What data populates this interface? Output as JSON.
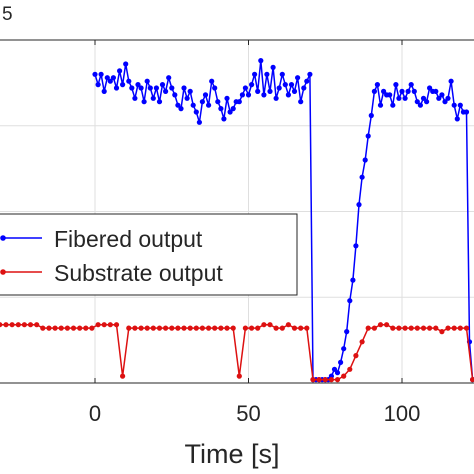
{
  "chart_data": {
    "type": "line",
    "xlabel": "Time [s]",
    "exponent_label": "5",
    "xlim": [
      -31,
      124
    ],
    "ylim": [
      0,
      1
    ],
    "grid": true,
    "legend_position": "middle-left",
    "x_ticks": [
      {
        "value": 0,
        "label": "0"
      },
      {
        "value": 50,
        "label": "50"
      },
      {
        "value": 100,
        "label": "100"
      }
    ],
    "series": [
      {
        "name": "Fibered output",
        "color": "#0000ff",
        "x": [
          0,
          1,
          2,
          3,
          4,
          5,
          6,
          7,
          8,
          9,
          10,
          11,
          12,
          13,
          14,
          15,
          16,
          17,
          18,
          19,
          20,
          21,
          22,
          23,
          24,
          25,
          26,
          27,
          28,
          29,
          30,
          31,
          32,
          33,
          34,
          35,
          36,
          37,
          38,
          39,
          40,
          41,
          42,
          43,
          44,
          45,
          46,
          47,
          48,
          49,
          50,
          51,
          52,
          53,
          54,
          55,
          56,
          57,
          58,
          59,
          60,
          61,
          62,
          63,
          64,
          65,
          66,
          67,
          68,
          69,
          70,
          71,
          72,
          73,
          74,
          75,
          76,
          77,
          78,
          79,
          80,
          81,
          82,
          83,
          84,
          85,
          86,
          87,
          88,
          89,
          90,
          91,
          92,
          93,
          94,
          95,
          96,
          97,
          98,
          99,
          100,
          101,
          102,
          103,
          104,
          105,
          106,
          107,
          108,
          109,
          110,
          111,
          112,
          113,
          114,
          115,
          116,
          117,
          118,
          119,
          120,
          121,
          122,
          123
        ],
        "values": [
          0.9,
          0.87,
          0.9,
          0.85,
          0.89,
          0.88,
          0.89,
          0.86,
          0.91,
          0.87,
          0.93,
          0.88,
          0.86,
          0.83,
          0.87,
          0.86,
          0.82,
          0.88,
          0.86,
          0.83,
          0.86,
          0.82,
          0.87,
          0.85,
          0.89,
          0.86,
          0.84,
          0.81,
          0.8,
          0.86,
          0.83,
          0.85,
          0.81,
          0.79,
          0.76,
          0.82,
          0.84,
          0.81,
          0.88,
          0.86,
          0.82,
          0.8,
          0.77,
          0.83,
          0.79,
          0.8,
          0.82,
          0.82,
          0.84,
          0.86,
          0.84,
          0.87,
          0.9,
          0.85,
          0.94,
          0.84,
          0.9,
          0.85,
          0.92,
          0.83,
          0.86,
          0.9,
          0.87,
          0.84,
          0.87,
          0.85,
          0.89,
          0.82,
          0.86,
          0.88,
          0.9,
          0.01,
          0.01,
          0.01,
          0.01,
          0.01,
          0.01,
          0.02,
          0.04,
          0.03,
          0.06,
          0.1,
          0.15,
          0.24,
          0.3,
          0.4,
          0.52,
          0.6,
          0.65,
          0.72,
          0.78,
          0.85,
          0.87,
          0.81,
          0.85,
          0.84,
          0.84,
          0.81,
          0.87,
          0.83,
          0.85,
          0.83,
          0.85,
          0.87,
          0.85,
          0.82,
          0.81,
          0.83,
          0.82,
          0.86,
          0.85,
          0.85,
          0.83,
          0.84,
          0.82,
          0.83,
          0.88,
          0.81,
          0.77,
          0.81,
          0.79,
          0.79,
          0.12,
          0.01
        ]
      },
      {
        "name": "Substrate output",
        "color": "#dd1111",
        "x": [
          -31,
          -29,
          -27,
          -25,
          -23,
          -21,
          -19,
          -17,
          -15,
          -13,
          -11,
          -9,
          -7,
          -5,
          -3,
          -1,
          1,
          3,
          5,
          7,
          9,
          11,
          13,
          15,
          17,
          19,
          21,
          23,
          25,
          27,
          29,
          31,
          33,
          35,
          37,
          39,
          41,
          43,
          45,
          47,
          49,
          51,
          53,
          55,
          57,
          59,
          61,
          63,
          65,
          67,
          69,
          71,
          73,
          75,
          77,
          79,
          81,
          83,
          85,
          87,
          89,
          91,
          93,
          95,
          97,
          99,
          101,
          103,
          105,
          107,
          109,
          111,
          113,
          115,
          117,
          119,
          121,
          123
        ],
        "values": [
          0.17,
          0.17,
          0.17,
          0.17,
          0.17,
          0.17,
          0.17,
          0.16,
          0.16,
          0.16,
          0.16,
          0.16,
          0.16,
          0.16,
          0.16,
          0.16,
          0.17,
          0.17,
          0.17,
          0.17,
          0.02,
          0.16,
          0.16,
          0.16,
          0.16,
          0.16,
          0.16,
          0.16,
          0.16,
          0.16,
          0.16,
          0.16,
          0.16,
          0.16,
          0.16,
          0.16,
          0.16,
          0.16,
          0.16,
          0.02,
          0.16,
          0.16,
          0.16,
          0.17,
          0.17,
          0.16,
          0.16,
          0.17,
          0.16,
          0.16,
          0.16,
          0.01,
          0.01,
          0.01,
          0.01,
          0.01,
          0.02,
          0.04,
          0.08,
          0.12,
          0.16,
          0.16,
          0.17,
          0.17,
          0.16,
          0.16,
          0.16,
          0.16,
          0.16,
          0.16,
          0.16,
          0.16,
          0.15,
          0.16,
          0.16,
          0.16,
          0.16,
          0.01
        ]
      }
    ]
  }
}
